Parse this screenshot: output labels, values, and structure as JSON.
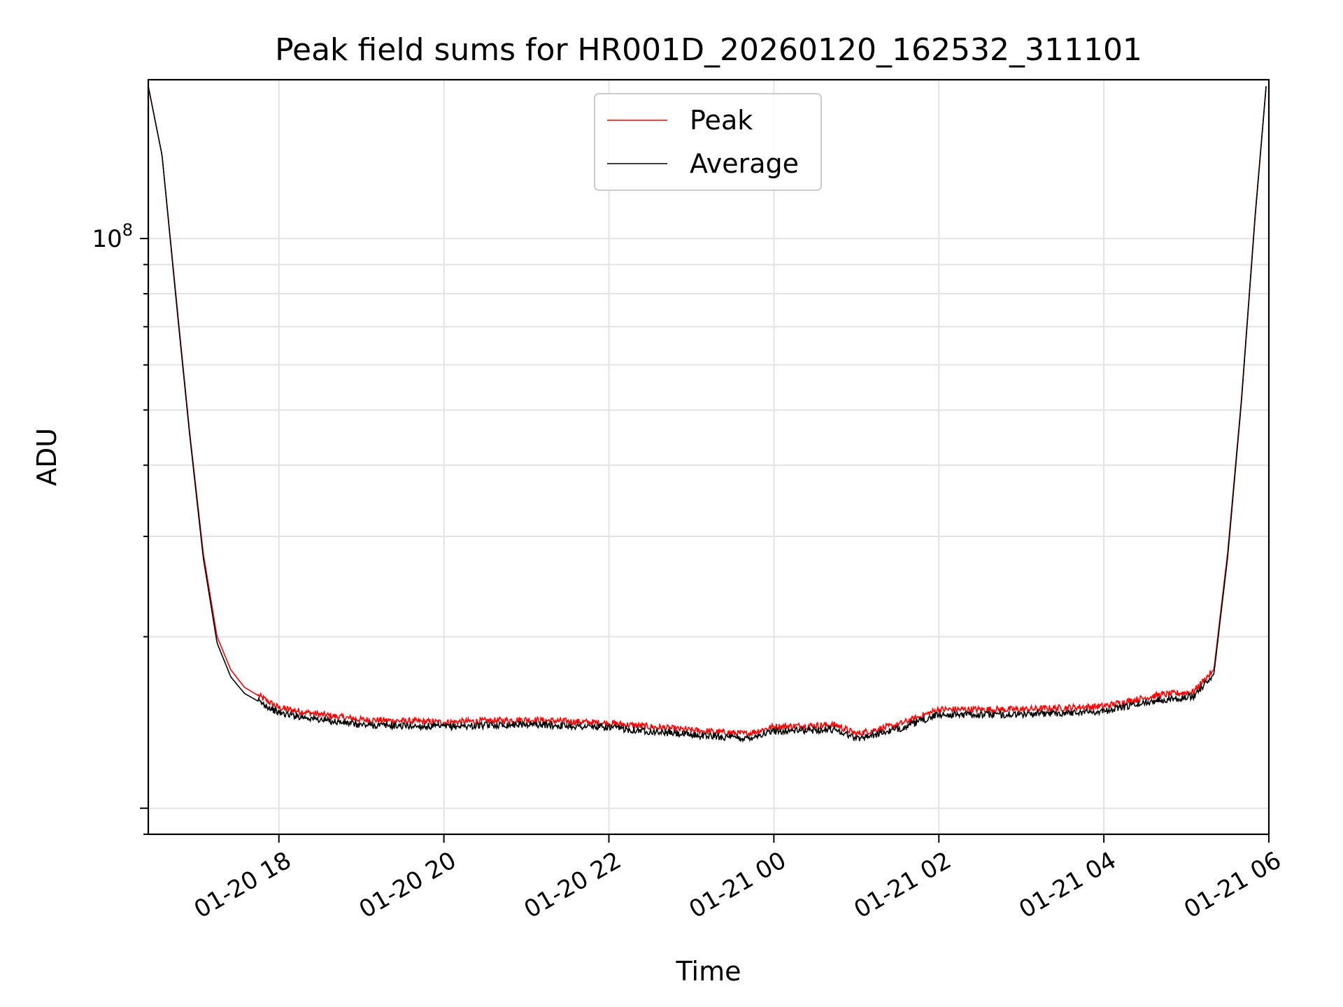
{
  "chart_data": {
    "type": "line",
    "title": "Peak field sums for HR001D_20260120_162532_311101",
    "xlabel": "Time",
    "ylabel": "ADU",
    "x_ticks": [
      "01-20 18",
      "01-20 20",
      "01-20 22",
      "01-21 00",
      "01-21 02",
      "01-21 04",
      "01-21 06"
    ],
    "x_tick_values": [
      "2026-01-20 18:00",
      "2026-01-20 20:00",
      "2026-01-20 22:00",
      "2026-01-21 00:00",
      "2026-01-21 02:00",
      "2026-01-21 04:00",
      "2026-01-21 06:00"
    ],
    "y_tick_label": {
      "base": "10",
      "exponent": "8"
    },
    "y_scale": "log",
    "xlim": [
      "2026-01-20 16:25",
      "2026-01-21 06:00"
    ],
    "ylim": [
      9000000,
      190000000
    ],
    "grid": true,
    "legend_position": "top-center",
    "series": [
      {
        "name": "Peak",
        "color": "#ff0000",
        "x": [
          "2026-01-20 16:25",
          "2026-01-20 16:35",
          "2026-01-20 16:45",
          "2026-01-20 16:55",
          "2026-01-20 17:05",
          "2026-01-20 17:15",
          "2026-01-20 17:25",
          "2026-01-20 17:35",
          "2026-01-20 18:00",
          "2026-01-20 18:30",
          "2026-01-20 19:00",
          "2026-01-20 20:00",
          "2026-01-20 21:00",
          "2026-01-20 22:00",
          "2026-01-20 23:00",
          "2026-01-20 23:40",
          "2026-01-21 00:00",
          "2026-01-21 00:45",
          "2026-01-21 01:00",
          "2026-01-21 01:30",
          "2026-01-21 02:00",
          "2026-01-21 03:00",
          "2026-01-21 04:00",
          "2026-01-21 04:40",
          "2026-01-21 05:05",
          "2026-01-21 05:20",
          "2026-01-21 05:30",
          "2026-01-21 05:40",
          "2026-01-21 05:50",
          "2026-01-21 05:58"
        ],
        "values": [
          185000000,
          140000000,
          80000000,
          46000000,
          28000000,
          20000000,
          17500000,
          16300000,
          15000000,
          14600000,
          14300000,
          14150000,
          14300000,
          14100000,
          13700000,
          13500000,
          13900000,
          14000000,
          13500000,
          14000000,
          14900000,
          14900000,
          15100000,
          15800000,
          16000000,
          17500000,
          28000000,
          52000000,
          110000000,
          185000000
        ]
      },
      {
        "name": "Average",
        "color": "#000000",
        "x": [
          "2026-01-20 16:25",
          "2026-01-20 16:35",
          "2026-01-20 16:45",
          "2026-01-20 16:55",
          "2026-01-20 17:05",
          "2026-01-20 17:15",
          "2026-01-20 17:25",
          "2026-01-20 17:35",
          "2026-01-20 18:00",
          "2026-01-20 18:30",
          "2026-01-20 19:00",
          "2026-01-20 20:00",
          "2026-01-20 21:00",
          "2026-01-20 22:00",
          "2026-01-20 23:00",
          "2026-01-20 23:40",
          "2026-01-21 00:00",
          "2026-01-21 00:45",
          "2026-01-21 01:00",
          "2026-01-21 01:30",
          "2026-01-21 02:00",
          "2026-01-21 03:00",
          "2026-01-21 04:00",
          "2026-01-21 04:40",
          "2026-01-21 05:05",
          "2026-01-21 05:20",
          "2026-01-21 05:30",
          "2026-01-21 05:40",
          "2026-01-21 05:50",
          "2026-01-21 05:58"
        ],
        "values": [
          185000000,
          140000000,
          79000000,
          45500000,
          27500000,
          19500000,
          17000000,
          15900000,
          14700000,
          14300000,
          14000000,
          13900000,
          14050000,
          13850000,
          13450000,
          13250000,
          13650000,
          13750000,
          13250000,
          13750000,
          14600000,
          14600000,
          14800000,
          15500000,
          15700000,
          17200000,
          27500000,
          51500000,
          109000000,
          185000000
        ]
      }
    ]
  }
}
